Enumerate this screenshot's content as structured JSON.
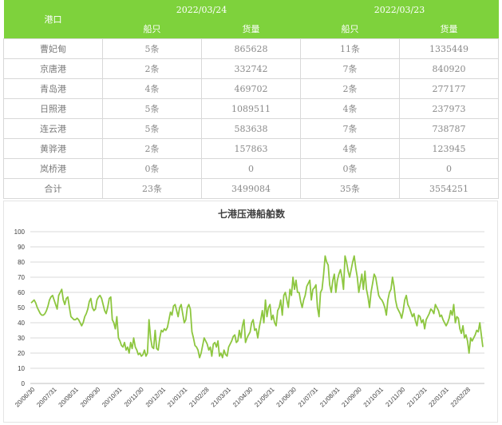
{
  "table": {
    "port_header": "港口",
    "dates": [
      "2022/03/24",
      "2022/03/23"
    ],
    "sub_headers": [
      "船只",
      "货量",
      "船只",
      "货量"
    ],
    "rows": [
      {
        "port": "曹妃甸",
        "ships1": "5条",
        "vol1": "865628",
        "ships2": "11条",
        "vol2": "1335449"
      },
      {
        "port": "京唐港",
        "ships1": "2条",
        "vol1": "332742",
        "ships2": "7条",
        "vol2": "840920"
      },
      {
        "port": "青岛港",
        "ships1": "4条",
        "vol1": "469702",
        "ships2": "2条",
        "vol2": "277177"
      },
      {
        "port": "日照港",
        "ships1": "5条",
        "vol1": "1089511",
        "ships2": "4条",
        "vol2": "237973"
      },
      {
        "port": "连云港",
        "ships1": "5条",
        "vol1": "583638",
        "ships2": "7条",
        "vol2": "738787"
      },
      {
        "port": "黄骅港",
        "ships1": "2条",
        "vol1": "157863",
        "ships2": "4条",
        "vol2": "123945"
      },
      {
        "port": "岚桥港",
        "ships1": "0条",
        "vol1": "0",
        "ships2": "0条",
        "vol2": "0"
      },
      {
        "port": "合计",
        "ships1": "23条",
        "vol1": "3499084",
        "ships2": "35条",
        "vol2": "3554251"
      }
    ]
  },
  "chart_data": {
    "type": "line",
    "title": "七港压港船舶数",
    "xlabel": "",
    "ylabel": "",
    "ylim": [
      0,
      100
    ],
    "yticks": [
      0,
      10,
      20,
      30,
      40,
      50,
      60,
      70,
      80,
      90,
      100
    ],
    "grid": true,
    "legend": "none",
    "line_color": "#8dc63f",
    "xticks": [
      "20/06/30",
      "20/07/31",
      "20/08/31",
      "20/09/30",
      "20/10/31",
      "20/11/30",
      "20/12/31",
      "21/01/31",
      "21/02/28",
      "21/03/31",
      "21/04/30",
      "21/05/31",
      "21/06/30",
      "21/07/31",
      "21/08/31",
      "21/09/30",
      "21/10/31",
      "21/11/30",
      "21/12/31",
      "22/01/31",
      "22/02/28"
    ],
    "series": [
      {
        "values": [
          53,
          54,
          55,
          53,
          50,
          48,
          46,
          45,
          45,
          46,
          48,
          51,
          55,
          57,
          58,
          55,
          52,
          49,
          58,
          60,
          62,
          55,
          52,
          56,
          57,
          50,
          44,
          43,
          42,
          42,
          43,
          42,
          40,
          38,
          40,
          44,
          46,
          49,
          54,
          56,
          50,
          48,
          49,
          55,
          57,
          58,
          56,
          52,
          48,
          46,
          50,
          56,
          57,
          42,
          40,
          36,
          44,
          30,
          28,
          25,
          24,
          27,
          22,
          24,
          20,
          27,
          23,
          30,
          24,
          22,
          19,
          20,
          18,
          19,
          22,
          18,
          20,
          42,
          30,
          24,
          23,
          35,
          23,
          22,
          30,
          35,
          34,
          36,
          35,
          37,
          42,
          47,
          45,
          51,
          52,
          48,
          44,
          50,
          52,
          46,
          40,
          42,
          50,
          52,
          49,
          34,
          30,
          25,
          24,
          22,
          17,
          20,
          25,
          30,
          28,
          26,
          22,
          24,
          18,
          26,
          27,
          24,
          28,
          18,
          20,
          17,
          22,
          19,
          18,
          24,
          26,
          28,
          31,
          32,
          27,
          28,
          35,
          30,
          38,
          42,
          27,
          30,
          32,
          34,
          40,
          42,
          35,
          36,
          30,
          37,
          42,
          48,
          40,
          55,
          44,
          50,
          52,
          42,
          45,
          40,
          38,
          48,
          50,
          55,
          45,
          58,
          60,
          55,
          50,
          62,
          58,
          70,
          62,
          68,
          60,
          60,
          54,
          50,
          55,
          58,
          64,
          66,
          68,
          55,
          62,
          63,
          65,
          50,
          44,
          60,
          62,
          72,
          84,
          80,
          78,
          65,
          60,
          68,
          72,
          60,
          68,
          72,
          75,
          70,
          62,
          84,
          80,
          74,
          70,
          75,
          80,
          84,
          76,
          70,
          60,
          66,
          72,
          62,
          74,
          62,
          57,
          50,
          60,
          66,
          72,
          70,
          64,
          58,
          56,
          55,
          53,
          50,
          45,
          55,
          60,
          62,
          70,
          64,
          55,
          50,
          48,
          46,
          43,
          48,
          55,
          58,
          52,
          50,
          47,
          44,
          46,
          41,
          38,
          45,
          44,
          40,
          42,
          36,
          42,
          44,
          46,
          49,
          48,
          46,
          52,
          50,
          48,
          44,
          45,
          42,
          40,
          38,
          40,
          43,
          48,
          45,
          52,
          40,
          44,
          43,
          36,
          33,
          38,
          30,
          32,
          28,
          20,
          30,
          28,
          30,
          32,
          35,
          34,
          40,
          32,
          24
        ]
      }
    ]
  }
}
